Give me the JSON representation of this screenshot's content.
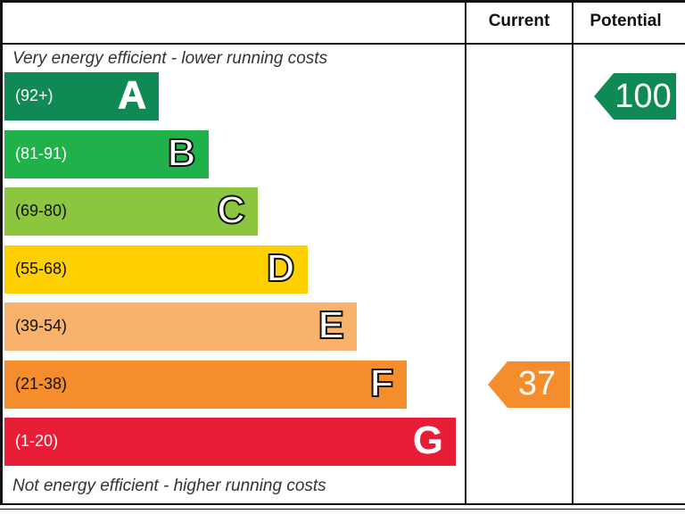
{
  "header": {
    "current_label": "Current",
    "potential_label": "Potential"
  },
  "notes": {
    "top": "Very energy efficient - lower running costs",
    "bottom": "Not energy efficient - higher running costs"
  },
  "chart_data": {
    "type": "bar",
    "title": "",
    "xlabel": "",
    "ylabel": "",
    "categories": [
      "A",
      "B",
      "C",
      "D",
      "E",
      "F",
      "G"
    ],
    "ranges": [
      "(92+)",
      "(81-91)",
      "(69-80)",
      "(55-68)",
      "(39-54)",
      "(21-38)",
      "(1-20)"
    ],
    "values": [
      1,
      2,
      3,
      4,
      5,
      6,
      7
    ],
    "colors": [
      "#0f8a54",
      "#21b14b",
      "#8cc63f",
      "#ffd000",
      "#f8b26c",
      "#f48d2b",
      "#e81d37"
    ],
    "current": {
      "value": 37,
      "band": "F",
      "color": "#f48d2b"
    },
    "potential": {
      "value": 100,
      "band": "A",
      "color": "#0f8a54"
    }
  }
}
